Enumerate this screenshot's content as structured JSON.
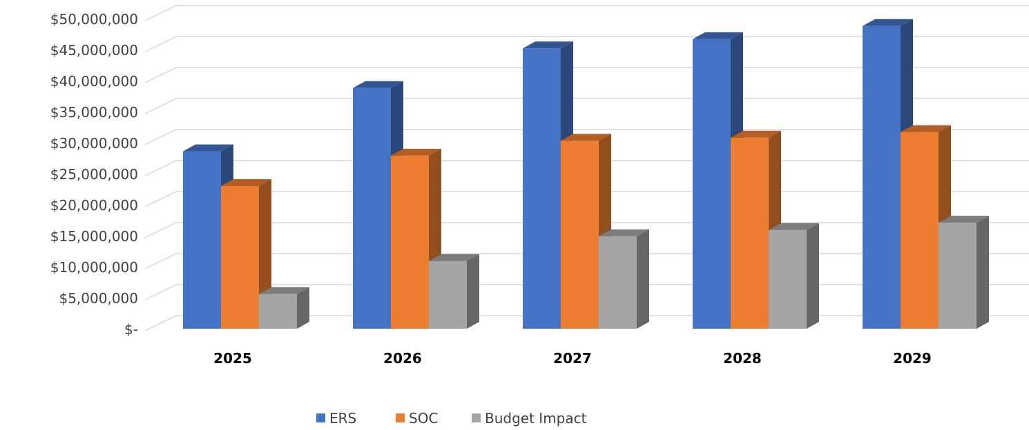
{
  "chart_data": {
    "type": "bar",
    "style": "3d-clustered-column",
    "title": "",
    "xlabel": "",
    "ylabel": "",
    "categories": [
      "2025",
      "2026",
      "2027",
      "2028",
      "2029"
    ],
    "series": [
      {
        "name": "ERS",
        "color": "#4472C4",
        "values": [
          28600000,
          38800000,
          45200000,
          46700000,
          48800000
        ]
      },
      {
        "name": "SOC",
        "color": "#ED7D31",
        "values": [
          23000000,
          27900000,
          30300000,
          30800000,
          31700000
        ]
      },
      {
        "name": "Budget Impact",
        "color": "#A5A5A5",
        "values": [
          5600000,
          10900000,
          14900000,
          15900000,
          17100000
        ]
      }
    ],
    "ylim": [
      0,
      50000000
    ],
    "yticks": [
      0,
      5000000,
      10000000,
      15000000,
      20000000,
      25000000,
      30000000,
      35000000,
      40000000,
      45000000,
      50000000
    ],
    "ytick_labels": [
      "$-",
      "$5,000,000",
      "$10,000,000",
      "$15,000,000",
      "$20,000,000",
      "$25,000,000",
      "$30,000,000",
      "$35,000,000",
      "$40,000,000",
      "$45,000,000",
      "$50,000,000"
    ],
    "grid": true,
    "legend": "bottom"
  }
}
